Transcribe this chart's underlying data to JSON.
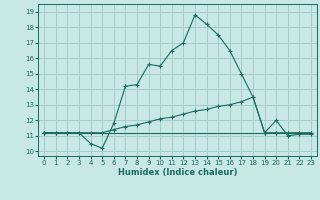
{
  "title": "",
  "xlabel": "Humidex (Indice chaleur)",
  "bg_color": "#c8e8e4",
  "grid_color": "#a8ccc8",
  "line_color": "#1a6b5e",
  "xlim": [
    -0.5,
    23.5
  ],
  "ylim": [
    9.7,
    19.5
  ],
  "xticks": [
    0,
    1,
    2,
    3,
    4,
    5,
    6,
    7,
    8,
    9,
    10,
    11,
    12,
    13,
    14,
    15,
    16,
    17,
    18,
    19,
    20,
    21,
    22,
    23
  ],
  "yticks": [
    10,
    11,
    12,
    13,
    14,
    15,
    16,
    17,
    18,
    19
  ],
  "line1_x": [
    0,
    1,
    2,
    3,
    4,
    5,
    6,
    7,
    8,
    9,
    10,
    11,
    12,
    13,
    14,
    15,
    16,
    17,
    18,
    19,
    20,
    21,
    22,
    23
  ],
  "line1_y": [
    11.2,
    11.2,
    11.2,
    11.2,
    10.5,
    10.2,
    11.8,
    14.2,
    14.3,
    15.6,
    15.5,
    16.5,
    17.0,
    18.8,
    18.2,
    17.5,
    16.5,
    15.0,
    13.5,
    11.2,
    12.0,
    11.0,
    11.1,
    11.1
  ],
  "line2_x": [
    0,
    1,
    2,
    3,
    4,
    5,
    6,
    7,
    8,
    9,
    10,
    11,
    12,
    13,
    14,
    15,
    16,
    17,
    18,
    19,
    20,
    21,
    22,
    23
  ],
  "line2_y": [
    11.2,
    11.2,
    11.2,
    11.2,
    11.2,
    11.2,
    11.4,
    11.6,
    11.7,
    11.9,
    12.1,
    12.2,
    12.4,
    12.6,
    12.7,
    12.9,
    13.0,
    13.2,
    13.5,
    11.2,
    11.2,
    11.2,
    11.2,
    11.2
  ],
  "line3_x": [
    0,
    19,
    20,
    21,
    22,
    23
  ],
  "line3_y": [
    11.2,
    11.2,
    11.2,
    11.2,
    11.2,
    11.2
  ],
  "marker": "+"
}
